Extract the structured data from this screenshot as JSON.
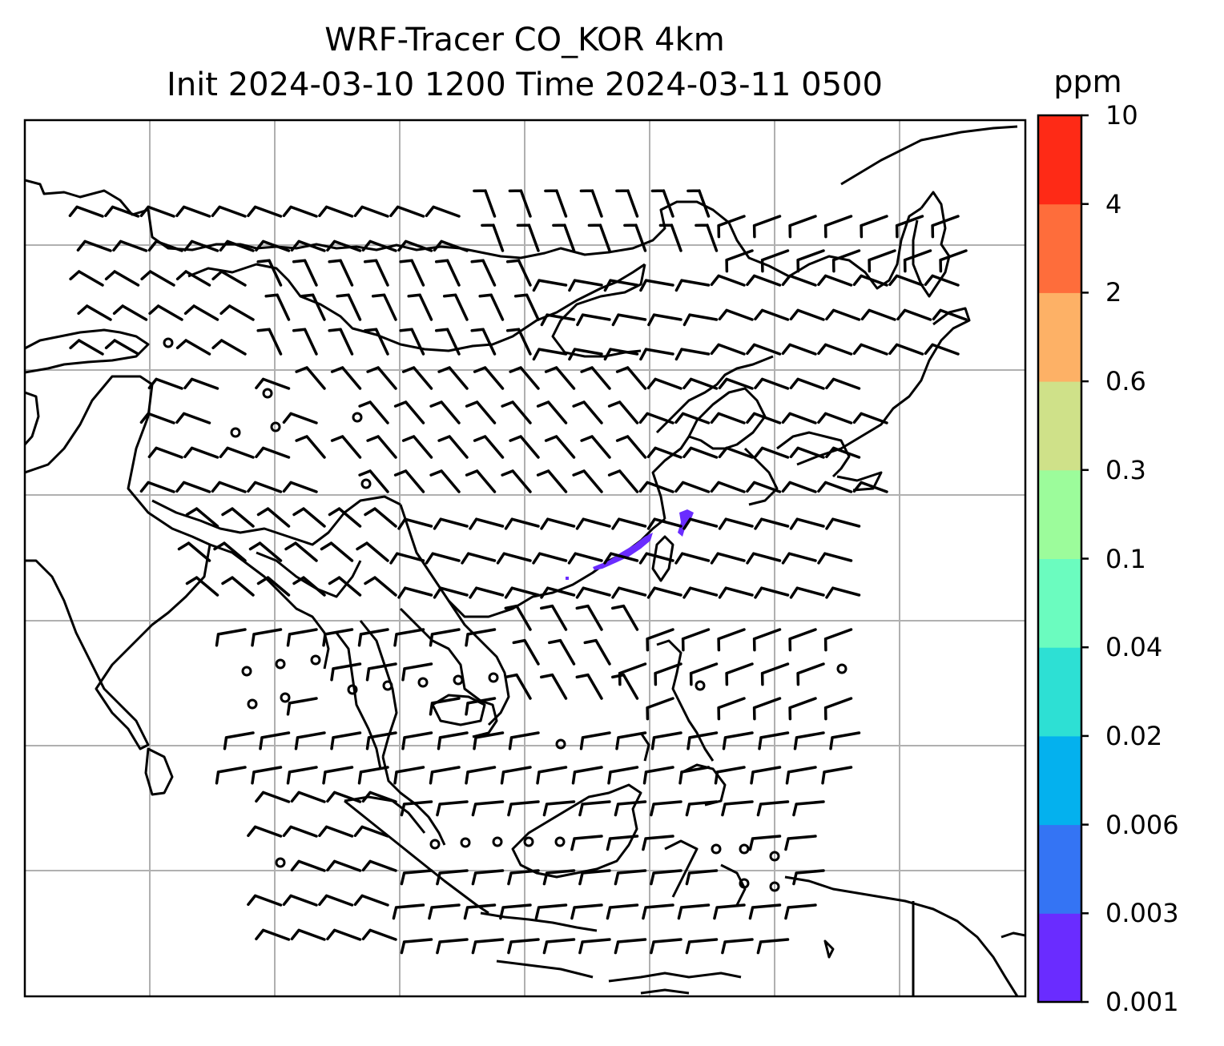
{
  "title": {
    "line1": "WRF-Tracer CO_KOR 4km",
    "line2": "Init 2024-03-10 1200 Time 2024-03-11 0500"
  },
  "map": {
    "grid": true,
    "gridlines_vertical": 7,
    "gridlines_horizontal": 6,
    "coastline_color": "#000000",
    "tracer_color": "#6a2cff",
    "wind_barb_color": "#000000"
  },
  "colorbar": {
    "unit": "ppm",
    "levels": [
      "0.001",
      "0.003",
      "0.006",
      "0.02",
      "0.04",
      "0.1",
      "0.3",
      "0.6",
      "2",
      "4",
      "10"
    ],
    "colors": [
      "#6a2cff",
      "#3474f4",
      "#04b1ee",
      "#2de0d4",
      "#6bfcbf",
      "#9cfc9b",
      "#cfe189",
      "#fdb166",
      "#fe6d3b",
      "#fe2a16"
    ]
  }
}
